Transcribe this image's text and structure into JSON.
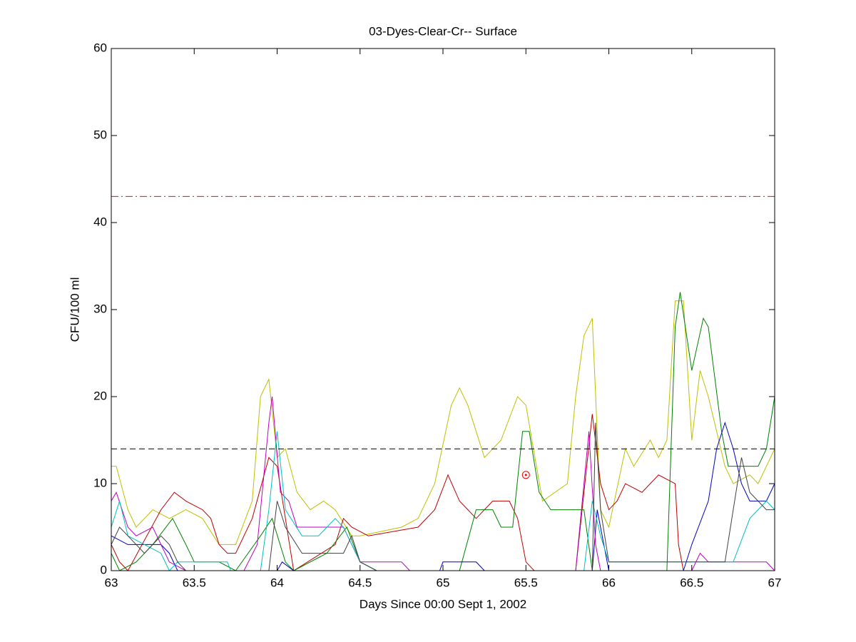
{
  "chart_data": {
    "type": "line",
    "title": "03-Dyes-Clear-Cr-- Surface",
    "xlabel": "Days Since 00:00 Sept 1, 2002",
    "ylabel": "CFU/100 ml",
    "xlim": [
      63,
      67
    ],
    "xticks": [
      63,
      63.5,
      64,
      64.5,
      65,
      65.5,
      66,
      66.5,
      67
    ],
    "ylim": [
      0,
      60
    ],
    "yticks": [
      0,
      10,
      20,
      30,
      40,
      50,
      60
    ],
    "series": [
      {
        "color": "#bfbf00",
        "x": [
          63,
          63.03,
          63.1,
          63.15,
          63.2,
          63.25,
          63.35,
          63.45,
          63.55,
          63.65,
          63.75,
          63.85,
          63.9,
          63.95,
          64.0,
          64.05,
          64.12,
          64.2,
          64.28,
          64.35,
          64.45,
          64.5,
          64.75,
          64.85,
          64.95,
          65.05,
          65.1,
          65.15,
          65.25,
          65.35,
          65.45,
          65.5,
          65.6,
          65.75,
          65.8,
          65.85,
          65.9,
          65.95,
          66.0,
          66.1,
          66.15,
          66.25,
          66.3,
          66.35,
          66.4,
          66.45,
          66.5,
          66.55,
          66.6,
          66.7,
          66.75,
          66.85,
          66.9,
          67
        ],
        "values": [
          12,
          12,
          7,
          5,
          6,
          7,
          6,
          7,
          6,
          3,
          3,
          8,
          20,
          22,
          13,
          14,
          9,
          7,
          8,
          7,
          4,
          4,
          5,
          6,
          10,
          19,
          21,
          19,
          13,
          15,
          20,
          19,
          8,
          10,
          20,
          27,
          29,
          7,
          5,
          14,
          12,
          15,
          13,
          15,
          31,
          31,
          15,
          23,
          20,
          12,
          10,
          11,
          10,
          14
        ]
      },
      {
        "color": "#bf0000",
        "x": [
          63,
          63.05,
          63.1,
          63.3,
          63.38,
          63.45,
          63.55,
          63.6,
          63.65,
          63.7,
          63.75,
          63.85,
          63.95,
          64.0,
          64.05,
          64.1,
          64.35,
          64.4,
          64.45,
          64.55,
          64.85,
          64.95,
          65.03,
          65.1,
          65.15,
          65.2,
          65.3,
          65.4,
          65.45,
          65.5,
          65.55,
          65.8,
          65.9,
          65.95,
          66.0,
          66.05,
          66.1,
          66.2,
          66.3,
          66.4,
          66.42,
          66.45,
          67
        ],
        "values": [
          3,
          1,
          0,
          7,
          9,
          8,
          7,
          6,
          3,
          2,
          2,
          6,
          13,
          12,
          6,
          0,
          3,
          6,
          5,
          4,
          5,
          7,
          11,
          8,
          7,
          6,
          8,
          8,
          6,
          1,
          0,
          0,
          18,
          10,
          7,
          8,
          10,
          9,
          11,
          10,
          3,
          0,
          0
        ]
      },
      {
        "color": "#008000",
        "x": [
          63,
          63.05,
          63.15,
          63.25,
          63.37,
          63.45,
          63.5,
          63.65,
          63.75,
          63.9,
          63.97,
          64.05,
          64.1,
          64.3,
          64.42,
          64.5,
          64.6,
          65.1,
          65.2,
          65.3,
          65.35,
          65.42,
          65.48,
          65.52,
          65.58,
          65.65,
          65.85,
          65.9,
          66.35,
          66.4,
          66.43,
          66.5,
          66.57,
          66.6,
          66.68,
          66.72,
          66.9,
          66.95,
          67
        ],
        "values": [
          2,
          0,
          1,
          3,
          6,
          3,
          1,
          1,
          0,
          4,
          6,
          1,
          0,
          2,
          5,
          1,
          0,
          0,
          7,
          7,
          5,
          5,
          16,
          16,
          9,
          7,
          7,
          0,
          0,
          28,
          32,
          23,
          29,
          28,
          16,
          12,
          12,
          14,
          20
        ]
      },
      {
        "color": "#0000bf",
        "x": [
          63,
          63.1,
          63.3,
          63.35,
          63.4,
          64.0,
          64.03,
          64.1,
          64.6,
          64.98,
          65.0,
          65.2,
          65.25,
          65.9,
          65.93,
          65.97,
          66.0,
          66.45,
          66.5,
          66.6,
          66.65,
          66.7,
          66.75,
          66.8,
          66.85,
          66.95,
          67
        ],
        "values": [
          4,
          3,
          3,
          2,
          0,
          0,
          1,
          0,
          0,
          0,
          1,
          1,
          0,
          0,
          7,
          3,
          0,
          0,
          3,
          8,
          14,
          17,
          14,
          10,
          8,
          8,
          10
        ]
      },
      {
        "color": "#bf00bf",
        "x": [
          63,
          63.03,
          63.1,
          63.15,
          63.25,
          63.3,
          63.35,
          63.45,
          63.8,
          63.88,
          63.95,
          63.97,
          64.02,
          64.07,
          64.12,
          64.4,
          64.45,
          64.5,
          64.75,
          64.8,
          65.8,
          65.88,
          65.92,
          65.95,
          66.5,
          66.55,
          66.6,
          66.95,
          67
        ],
        "values": [
          8,
          9,
          5,
          4,
          5,
          3,
          1,
          0,
          0,
          3,
          17,
          20,
          9,
          8,
          5,
          5,
          3,
          1,
          1,
          0,
          0,
          16,
          3,
          0,
          0,
          2,
          1,
          1,
          0
        ]
      },
      {
        "color": "#00bfbf",
        "x": [
          63,
          63.05,
          63.1,
          63.3,
          63.35,
          63.4,
          63.7,
          63.72,
          63.9,
          63.95,
          64.0,
          64.05,
          64.15,
          64.25,
          64.35,
          64.4,
          64.45,
          64.5,
          64.6,
          65.85,
          65.9,
          65.95,
          66.0,
          66.75,
          66.85,
          66.95,
          67
        ],
        "values": [
          5,
          8,
          4,
          2,
          0,
          1,
          1,
          0,
          0,
          7,
          16,
          7,
          4,
          4,
          6,
          5,
          3,
          1,
          0,
          0,
          8,
          4,
          1,
          1,
          6,
          8,
          7
        ]
      },
      {
        "color": "#404040",
        "x": [
          63,
          63.05,
          63.1,
          63.2,
          63.25,
          63.3,
          63.35,
          63.4,
          63.45,
          63.95,
          64.0,
          64.05,
          64.15,
          64.4,
          64.45,
          64.5,
          64.6,
          65.9,
          65.92,
          65.95,
          66.0,
          66.7,
          66.8,
          66.85,
          66.95,
          67
        ],
        "values": [
          3,
          5,
          4,
          2,
          3,
          4,
          3,
          1,
          0,
          0,
          8,
          5,
          2,
          2,
          4,
          1,
          0,
          0,
          17,
          7,
          1,
          1,
          13,
          9,
          7,
          7
        ]
      },
      {
        "color": "#ff0000",
        "dash": "10,4,2,4",
        "x": [
          63,
          67
        ],
        "values": [
          43,
          43
        ]
      },
      {
        "color": "#000000",
        "dash": "8,5",
        "x": [
          63,
          67
        ],
        "values": [
          14,
          14
        ]
      }
    ],
    "points": [
      {
        "color": "#ff0000",
        "x": 65.5,
        "y": 11
      }
    ]
  }
}
